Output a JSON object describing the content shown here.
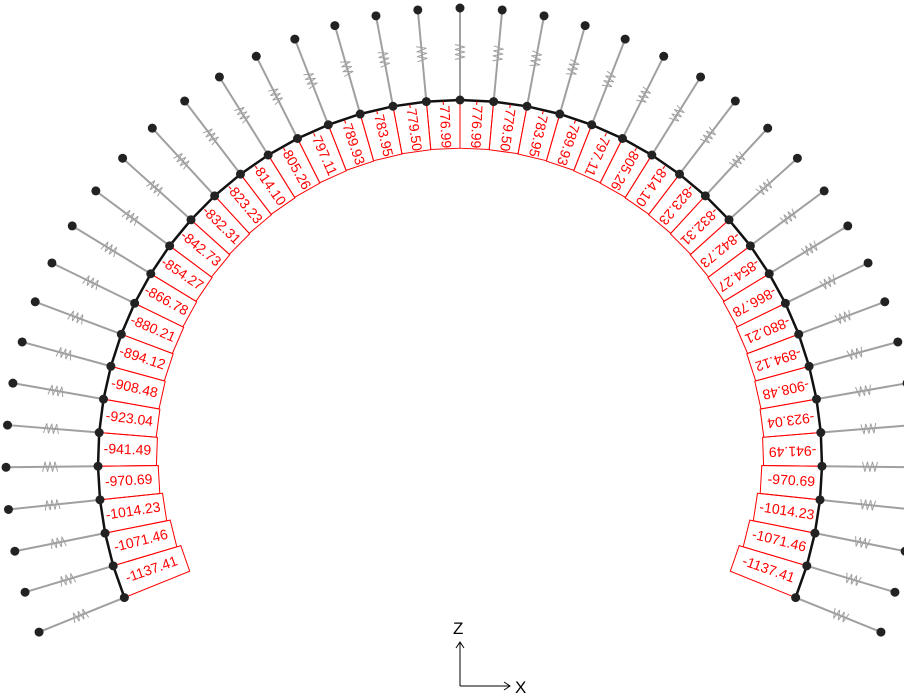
{
  "diagram": {
    "left_values": [
      "-1137.41",
      "-1071.46",
      "-1014.23",
      "-970.69",
      "-941.49",
      "-923.04",
      "-908.48",
      "-894.12",
      "-880.21",
      "-866.78",
      "-854.27",
      "-842.73",
      "-832.31",
      "-823.23",
      "-814.10",
      "-805.26",
      "-797.11",
      "-789.93",
      "-783.95",
      "-779.50",
      "-776.99"
    ],
    "right_values": [
      "-776.99",
      "-779.50",
      "-783.95",
      "-789.93",
      "-797.11",
      "-805.26",
      "-814.10",
      "-823.23",
      "-832.31",
      "-842.73",
      "-854.27",
      "-866.78",
      "-880.21",
      "-894.12",
      "-908.48",
      "-923.04",
      "-941.49",
      "-970.69",
      "-1014.23",
      "-1071.46",
      "-1137.41"
    ],
    "axes": {
      "z_label": "Z",
      "x_label": "X"
    },
    "colors": {
      "force": "#ff0000",
      "lining": "#111111",
      "spring": "#a0a0a0",
      "node": "#222222"
    }
  }
}
